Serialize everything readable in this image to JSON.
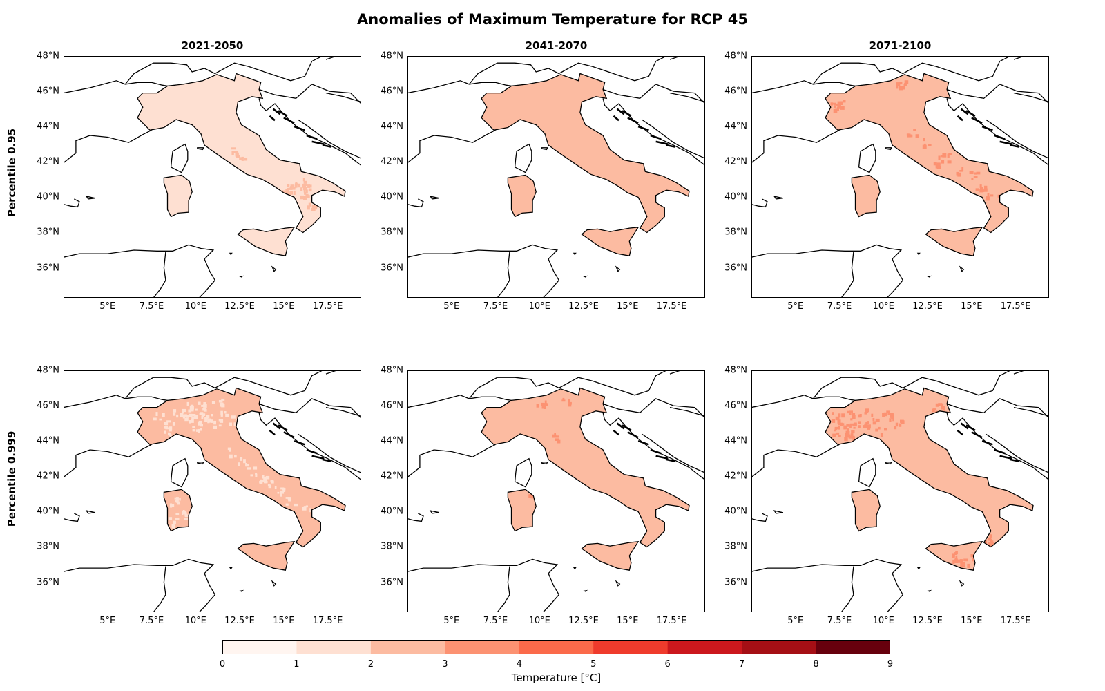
{
  "title": "Anomalies of Maximum Temperature for RCP 45",
  "row_labels": [
    "Percentile 0.95",
    "Percentile 0.999"
  ],
  "columns": [
    "2021-2050",
    "2041-2070",
    "2071-2100"
  ],
  "lat_ticks": [
    "48°N",
    "46°N",
    "44°N",
    "42°N",
    "40°N",
    "38°N",
    "36°N"
  ],
  "lon_ticks": [
    "5°E",
    "7.5°E",
    "10°E",
    "12.5°E",
    "15°E",
    "17.5°E"
  ],
  "colorbar": {
    "label": "Temperature [°C]",
    "ticks": [
      "0",
      "1",
      "2",
      "3",
      "4",
      "5",
      "6",
      "7",
      "8",
      "9"
    ],
    "colors": [
      "#fff5f0",
      "#fee0d2",
      "#fcbba1",
      "#fc9272",
      "#fb6a4a",
      "#ef3b2c",
      "#cb181d",
      "#a50f15",
      "#67000d"
    ]
  },
  "panels": [
    {
      "column": "2021-2050",
      "row": "Percentile 0.95",
      "base_color": "#fee0d2",
      "patch_color": "#fcbba1"
    },
    {
      "column": "2041-2070",
      "row": "Percentile 0.95",
      "base_color": "#fcbba1",
      "patch_color": "#fcbba1"
    },
    {
      "column": "2071-2100",
      "row": "Percentile 0.95",
      "base_color": "#fcbba1",
      "patch_color": "#fc9272"
    },
    {
      "column": "2021-2050",
      "row": "Percentile 0.999",
      "base_color": "#fcbba1",
      "patch_color": "#fee0d2"
    },
    {
      "column": "2041-2070",
      "row": "Percentile 0.999",
      "base_color": "#fcbba1",
      "patch_color": "#fc9272"
    },
    {
      "column": "2071-2100",
      "row": "Percentile 0.999",
      "base_color": "#fcbba1",
      "patch_color": "#fc9272"
    }
  ]
}
